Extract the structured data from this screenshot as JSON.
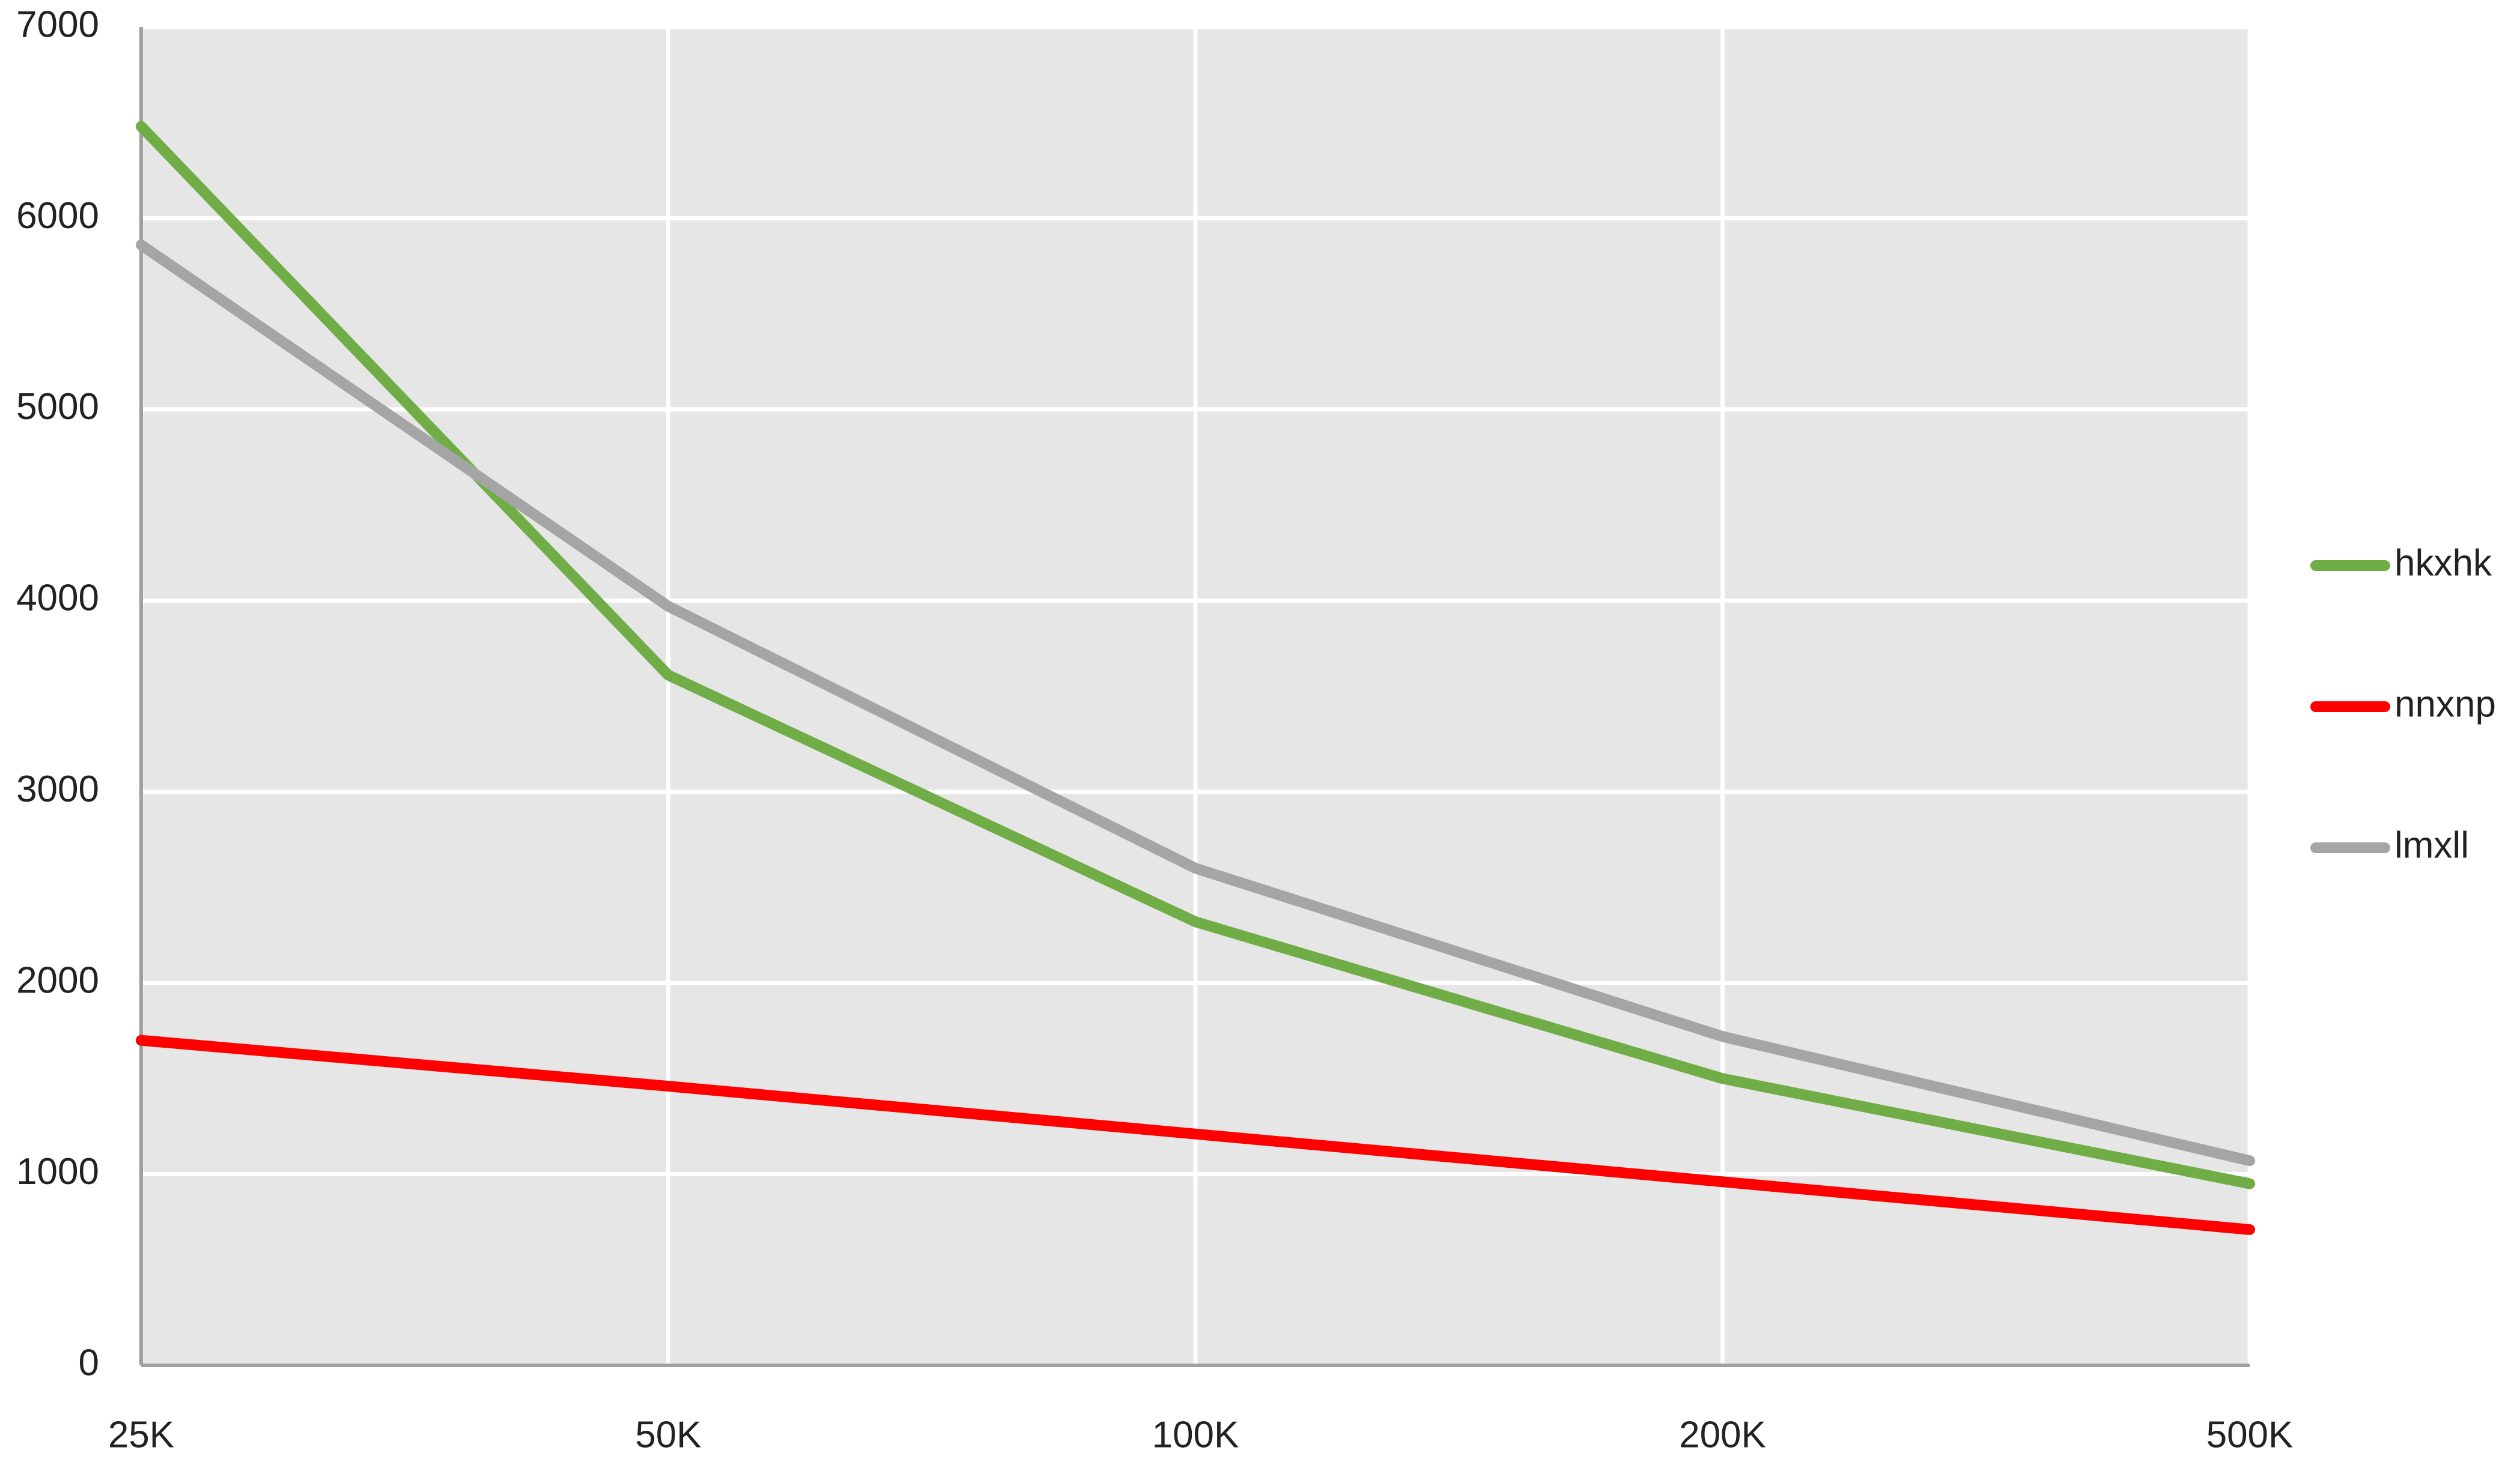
{
  "chart_data": {
    "type": "line",
    "categories": [
      "25K",
      "50K",
      "100K",
      "200K",
      "500K"
    ],
    "series": [
      {
        "name": "hkxhk",
        "color": "#70ad47",
        "values": [
          6480,
          3610,
          2320,
          1500,
          950
        ]
      },
      {
        "name": "nnxnp",
        "color": "#ff0000",
        "values": [
          1700,
          1460,
          1210,
          960,
          710
        ]
      },
      {
        "name": "lmxll",
        "color": "#a5a5a5",
        "values": [
          5860,
          3970,
          2600,
          1720,
          1070
        ]
      }
    ],
    "ylim": [
      0,
      7000
    ],
    "yticks": [
      0,
      1000,
      2000,
      3000,
      4000,
      5000,
      6000,
      7000
    ],
    "grid": true,
    "legend": "right",
    "background": "#e6e6e6"
  }
}
